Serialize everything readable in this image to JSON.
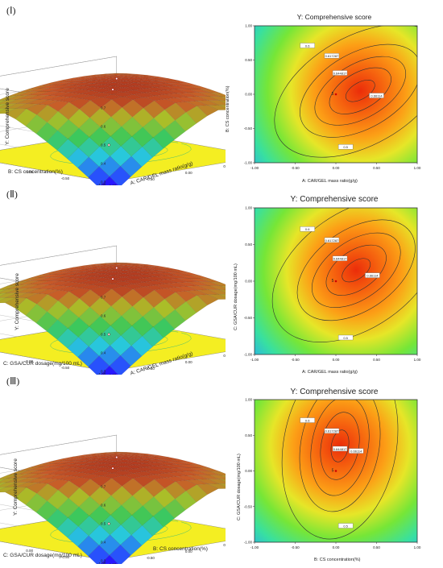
{
  "figure": {
    "panels": [
      "(Ⅰ)",
      "(Ⅱ)",
      "(Ⅲ)"
    ]
  },
  "chart_data": [
    {
      "type": "surface3d",
      "panel": "(Ⅰ)",
      "zlabel": "Y: Comprehensive score",
      "xlabel": "A: CAR/GEL mass ratio(g/g)",
      "ylabel": "B: CS concentration(%)",
      "zticks": [
        "0.7",
        "0.6",
        "0.5",
        "0.4",
        "0.3"
      ],
      "xticks": [
        "-1.00",
        "-0.50",
        "0.00",
        "0.50",
        "1.00"
      ],
      "yticks": [
        "1.00",
        "0.50",
        "0.00",
        "-0.50",
        "-1.00"
      ],
      "zlim": [
        0.3,
        0.7
      ],
      "corner_values": {
        "x-1_y-1": 0.49,
        "x1_y1": 0.57,
        "x-1_y1": 0.56,
        "x1_y-1": 0.58
      },
      "peak": 0.66
    },
    {
      "type": "contour",
      "panel": "(Ⅰ)",
      "title": "Y: Comprehensive score",
      "xlabel": "A: CAR/GEL mass ratio(g/g)",
      "ylabel": "B: CS concentration(%)",
      "xticks": [
        "-1.00",
        "-0.50",
        "0.00",
        "0.50",
        "1.00"
      ],
      "yticks": [
        "1.00",
        "0.50",
        "0.00",
        "-0.50",
        "-1.00"
      ],
      "xlim": [
        -1,
        1
      ],
      "ylim": [
        -1,
        1
      ],
      "levels": [
        "0.5",
        "0.6",
        "0.617287",
        "0.644817",
        "0.66114"
      ],
      "design_point_label": "5",
      "center": [
        0.3,
        0.05
      ]
    },
    {
      "type": "surface3d",
      "panel": "(Ⅱ)",
      "zlabel": "Y: Comprehensive score",
      "xlabel": "A: CAR/GEL mass ratio(g/g)",
      "ylabel": "C: GSA/CUR dosage(mg/100 mL)",
      "zticks": [
        "0.7",
        "0.6",
        "0.5",
        "0.4",
        "0.3"
      ],
      "xticks": [
        "-1.00",
        "-0.50",
        "0.00",
        "0.50",
        "1.00"
      ],
      "yticks": [
        "1.00",
        "0.50",
        "0.00",
        "-0.50",
        "-1.00"
      ],
      "zlim": [
        0.3,
        0.7
      ],
      "peak": 0.66
    },
    {
      "type": "contour",
      "panel": "(Ⅱ)",
      "title": "Y: Comprehensive score",
      "xlabel": "A: CAR/GEL mass ratio(g/g)",
      "ylabel": "C: GSA/CUR dosage(mg/100 mL)",
      "xticks": [
        "-1.00",
        "-0.50",
        "0.00",
        "0.50",
        "1.00"
      ],
      "yticks": [
        "1.00",
        "0.50",
        "0.00",
        "-0.50",
        "-1.00"
      ],
      "xlim": [
        -1,
        1
      ],
      "ylim": [
        -1,
        1
      ],
      "levels": [
        "0.5",
        "0.6",
        "0.617287",
        "0.644817",
        "0.66114"
      ],
      "design_point_label": "5",
      "center": [
        0.25,
        0.15
      ]
    },
    {
      "type": "surface3d",
      "panel": "(Ⅲ)",
      "zlabel": "Y: Comprehensive score",
      "xlabel": "B: CS concentration(%)",
      "ylabel": "C: GSA/CUR dosage(mg/100 mL)",
      "zticks": [
        "0.7",
        "0.6",
        "0.5",
        "0.4",
        "0.3"
      ],
      "xticks": [
        "-1.00",
        "-0.50",
        "0.00",
        "0.50",
        "1.00"
      ],
      "yticks": [
        "1.00",
        "0.50",
        "0.00",
        "-0.50",
        "-1.00"
      ],
      "zlim": [
        0.3,
        0.7
      ],
      "peak": 0.66
    },
    {
      "type": "contour",
      "panel": "(Ⅲ)",
      "title": "Y: Comprehensive score",
      "xlabel": "B: CS concentration(%)",
      "ylabel": "C: GSA/CUR dosage(mg/100 mL)",
      "xticks": [
        "-1.00",
        "-0.50",
        "0.00",
        "0.50",
        "1.00"
      ],
      "yticks": [
        "1.00",
        "0.50",
        "0.00",
        "-0.50",
        "-1.00"
      ],
      "xlim": [
        -1,
        1
      ],
      "ylim": [
        -1,
        1
      ],
      "levels": [
        "0.5",
        "0.5",
        "0.6",
        "0.617287",
        "0.644817",
        "0.66114"
      ],
      "design_point_label": "5",
      "center": [
        0.05,
        0.35
      ]
    }
  ]
}
